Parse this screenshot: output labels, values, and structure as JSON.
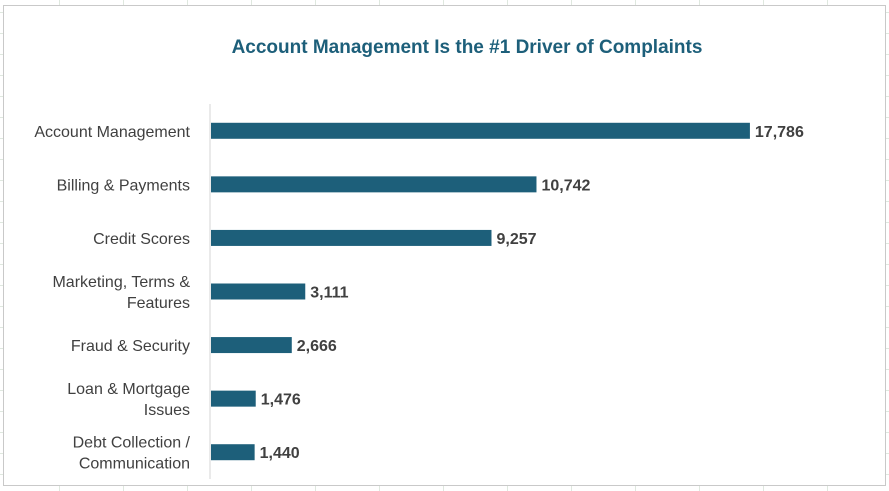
{
  "chart_data": {
    "type": "bar",
    "orientation": "horizontal",
    "title": "Account Management Is the #1 Driver of Complaints",
    "categories": [
      "Account Management",
      "Billing & Payments",
      "Credit Scores",
      "Marketing, Terms & Features",
      "Fraud & Security",
      "Loan & Mortgage Issues",
      "Debt Collection / Communication"
    ],
    "category_lines": [
      [
        "Account Management"
      ],
      [
        "Billing & Payments"
      ],
      [
        "Credit Scores"
      ],
      [
        "Marketing, Terms &",
        "Features"
      ],
      [
        "Fraud & Security"
      ],
      [
        "Loan & Mortgage",
        "Issues"
      ],
      [
        "Debt Collection /",
        "Communication"
      ]
    ],
    "values": [
      17786,
      10742,
      9257,
      3111,
      2666,
      1476,
      1440
    ],
    "data_labels": [
      "17,786",
      "10,742",
      "9,257",
      "3,111",
      "2,666",
      "1,476",
      "1,440"
    ],
    "xlim": [
      0,
      20000
    ],
    "bar_color": "#1d5f7a",
    "grid": false,
    "legend": "none"
  }
}
